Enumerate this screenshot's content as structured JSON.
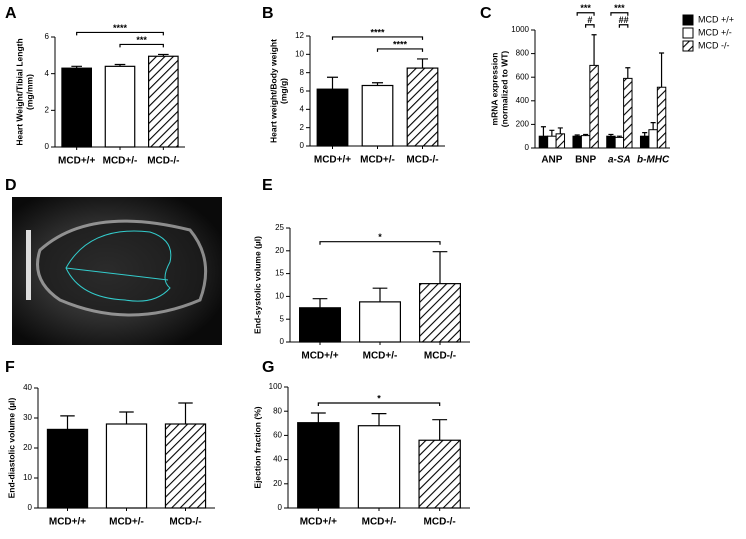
{
  "chart_data": [
    {
      "type": "bar",
      "label": "A",
      "ylabel": [
        "Heart Weight/Tibial Length",
        "(mg/mm)"
      ],
      "categories": [
        "MCD+/+",
        "MCD+/-",
        "MCD-/-"
      ],
      "values": [
        4.3,
        4.4,
        4.95
      ],
      "errors": [
        0.1,
        0.1,
        0.1
      ],
      "fills": [
        "#000000",
        "#ffffff",
        "hatched"
      ],
      "ylim": [
        0,
        6
      ],
      "yticks": [
        0,
        2,
        4,
        6
      ],
      "significance": [
        {
          "between": [
            "MCD+/+",
            "MCD-/-"
          ],
          "label": "****"
        },
        {
          "between": [
            "MCD+/-",
            "MCD-/-"
          ],
          "label": "***"
        }
      ]
    },
    {
      "type": "bar",
      "label": "B",
      "ylabel": [
        "Heart weight/Body weight",
        "(mg/g)"
      ],
      "categories": [
        "MCD+/+",
        "MCD+/-",
        "MCD-/-"
      ],
      "values": [
        6.2,
        6.6,
        8.5
      ],
      "errors": [
        1.3,
        0.3,
        1.0
      ],
      "fills": [
        "#000000",
        "#ffffff",
        "hatched"
      ],
      "ylim": [
        0,
        12
      ],
      "yticks": [
        0,
        2,
        4,
        6,
        8,
        10,
        12
      ],
      "significance": [
        {
          "between": [
            "MCD+/+",
            "MCD-/-"
          ],
          "label": "****"
        },
        {
          "between": [
            "MCD+/-",
            "MCD-/-"
          ],
          "label": "****"
        }
      ]
    },
    {
      "type": "grouped-bar",
      "label": "C",
      "ylabel": [
        "mRNA expression",
        "(normalized to WT)"
      ],
      "categories": [
        "ANP",
        "BNP",
        "a-SA",
        "b-MHC"
      ],
      "series": [
        {
          "name": "MCD +/+",
          "fill": "#000000",
          "values": [
            100,
            100,
            100,
            100
          ],
          "errors": [
            80,
            10,
            15,
            30
          ]
        },
        {
          "name": "MCD +/-",
          "fill": "#ffffff",
          "values": [
            100,
            105,
            90,
            155
          ],
          "errors": [
            50,
            10,
            10,
            60
          ]
        },
        {
          "name": "MCD -/-",
          "fill": "hatched",
          "values": [
            120,
            700,
            590,
            515
          ],
          "errors": [
            50,
            260,
            90,
            290
          ]
        }
      ],
      "ylim": [
        0,
        1000
      ],
      "yticks": [
        0,
        200,
        400,
        600,
        800,
        1000
      ],
      "legend": "right",
      "significance": [
        {
          "category": "BNP",
          "between": [
            "MCD +/+",
            "MCD -/-"
          ],
          "label": "***"
        },
        {
          "category": "BNP",
          "between": [
            "MCD +/-",
            "MCD -/-"
          ],
          "label": "#"
        },
        {
          "category": "a-SA",
          "between": [
            "MCD +/+",
            "MCD -/-"
          ],
          "label": "***"
        },
        {
          "category": "a-SA",
          "between": [
            "MCD +/-",
            "MCD -/-"
          ],
          "label": "##"
        }
      ]
    },
    {
      "type": "image",
      "label": "D"
    },
    {
      "type": "bar",
      "label": "E",
      "ylabel": [
        "End-systolic volume (µl)"
      ],
      "categories": [
        "MCD+/+",
        "MCD+/-",
        "MCD-/-"
      ],
      "values": [
        7.5,
        8.8,
        12.8
      ],
      "errors": [
        2,
        3,
        7
      ],
      "fills": [
        "#000000",
        "#ffffff",
        "hatched"
      ],
      "ylim": [
        0,
        25
      ],
      "yticks": [
        0,
        5,
        10,
        15,
        20,
        25
      ],
      "significance": [
        {
          "between": [
            "MCD+/+",
            "MCD-/-"
          ],
          "label": "*"
        }
      ]
    },
    {
      "type": "bar",
      "label": "F",
      "ylabel": [
        "End-diastolic volume (µl)"
      ],
      "categories": [
        "MCD+/+",
        "MCD+/-",
        "MCD-/-"
      ],
      "values": [
        26.2,
        28,
        28
      ],
      "errors": [
        4.5,
        4,
        7
      ],
      "fills": [
        "#000000",
        "#ffffff",
        "hatched"
      ],
      "ylim": [
        0,
        40
      ],
      "yticks": [
        0,
        10,
        20,
        30,
        40
      ],
      "significance": []
    },
    {
      "type": "bar",
      "label": "G",
      "ylabel": [
        "Ejection fraction (%)"
      ],
      "categories": [
        "MCD+/+",
        "MCD+/-",
        "MCD-/-"
      ],
      "values": [
        70.5,
        68,
        56
      ],
      "errors": [
        8,
        10,
        17
      ],
      "fills": [
        "#000000",
        "#ffffff",
        "hatched"
      ],
      "ylim": [
        0,
        100
      ],
      "yticks": [
        0,
        20,
        40,
        60,
        80,
        100
      ],
      "significance": [
        {
          "between": [
            "MCD+/+",
            "MCD-/-"
          ],
          "label": "*"
        }
      ]
    }
  ]
}
